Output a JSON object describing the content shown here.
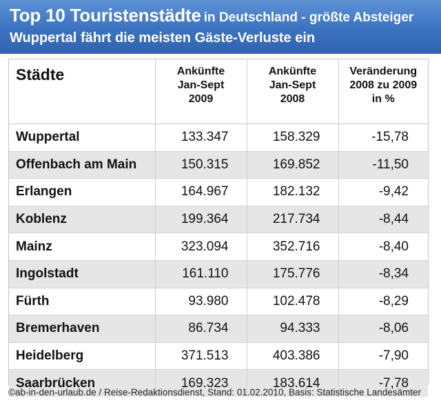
{
  "header": {
    "title_main": "Top 10 Touristenstädte",
    "title_rest": "in Deutschland - größte Absteiger",
    "subtitle": "Wuppertal fährt die meisten Gäste-Verluste ein"
  },
  "table": {
    "columns": [
      "Städte",
      "Ankünfte Jan-Sept 2009",
      "Ankünfte Jan-Sept 2008",
      "Veränderung 2008 zu 2009 in %"
    ],
    "column_lines": [
      [
        "Städte"
      ],
      [
        "Ankünfte",
        "Jan-Sept",
        "2009"
      ],
      [
        "Ankünfte",
        "Jan-Sept",
        "2008"
      ],
      [
        "Veränderung",
        "2008 zu 2009",
        "in %"
      ]
    ],
    "rows": [
      {
        "city": "Wuppertal",
        "a2009": "133.347",
        "a2008": "158.329",
        "change": "-15,78"
      },
      {
        "city": "Offenbach am Main",
        "a2009": "150.315",
        "a2008": "169.852",
        "change": "-11,50"
      },
      {
        "city": "Erlangen",
        "a2009": "164.967",
        "a2008": "182.132",
        "change": "-9,42"
      },
      {
        "city": "Koblenz",
        "a2009": "199.364",
        "a2008": "217.734",
        "change": "-8,44"
      },
      {
        "city": "Mainz",
        "a2009": "323.094",
        "a2008": "352.716",
        "change": "-8,40"
      },
      {
        "city": "Ingolstadt",
        "a2009": "161.110",
        "a2008": "175.776",
        "change": "-8,34"
      },
      {
        "city": "Fürth",
        "a2009": "93.980",
        "a2008": "102.478",
        "change": "-8,29"
      },
      {
        "city": "Bremerhaven",
        "a2009": "86.734",
        "a2008": "94.333",
        "change": "-8,06"
      },
      {
        "city": "Heidelberg",
        "a2009": "371.513",
        "a2008": "403.386",
        "change": "-7,90"
      },
      {
        "city": "Saarbrücken",
        "a2009": "169.323",
        "a2008": "183.614",
        "change": "-7,78"
      }
    ]
  },
  "footer": {
    "source": "©ab-in-den-urlaub.de / Reise-Redaktionsdienst, Stand: 01.02.2010, Basis: Statistische Landesämter"
  },
  "colors": {
    "banner": "#3b72c0",
    "row_shade": "#e6e6e6"
  }
}
